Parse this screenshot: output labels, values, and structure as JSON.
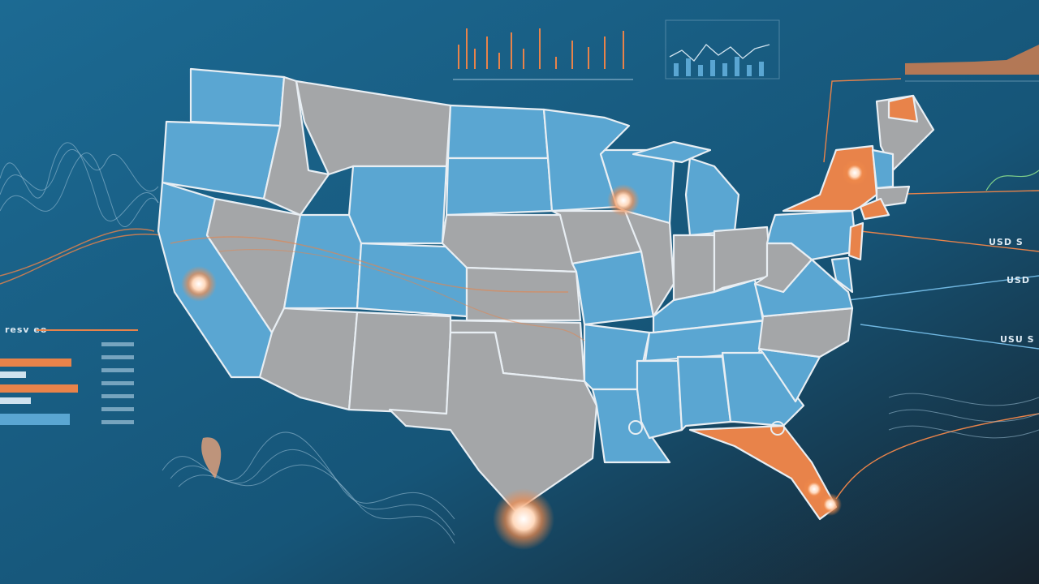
{
  "labels": {
    "left_header": "resv eo",
    "right_top": "USD S",
    "right_mid": "USD",
    "right_low": "USU S"
  }
}
